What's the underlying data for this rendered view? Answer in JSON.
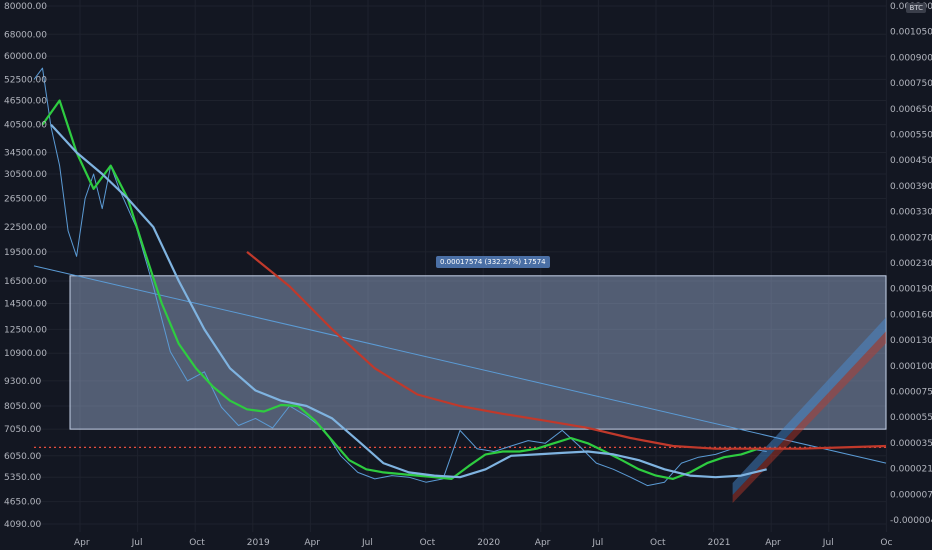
{
  "symbol_badge": "BTC",
  "price_range_label": "0.00017574 (332.27%) 17574",
  "chart_data": {
    "type": "line",
    "left_axis_labels": [
      "80000.00",
      "68000.00",
      "60000.00",
      "52500.00",
      "46500.00",
      "40500.00",
      "34500.00",
      "30500.00",
      "26500.00",
      "22500.00",
      "19500.00",
      "16500.00",
      "14500.00",
      "12500.00",
      "10900.00",
      "9300.00",
      "8050.00",
      "7050.00",
      "6050.00",
      "5350.00",
      "4650.00",
      "4090.00"
    ],
    "right_axis_labels": [
      "0.00120000",
      "0.00105000",
      "0.00090000",
      "0.00075000",
      "0.00065000",
      "0.00055000",
      "0.00045000",
      "0.00039000",
      "0.00033000",
      "0.00027000",
      "0.00023000",
      "0.00019000",
      "0.00016000",
      "0.00013000",
      "0.00010000",
      "0.00007500",
      "0.00005500",
      "0.00003500",
      "0.00002100",
      "0.00000700",
      "-0.00000400"
    ],
    "x_tick_labels": [
      "Apr",
      "Jul",
      "Oct",
      "2019",
      "Apr",
      "Jul",
      "Oct",
      "2020",
      "Apr",
      "Jul",
      "Oct",
      "2021",
      "Apr",
      "Jul",
      "Oc"
    ],
    "series": [
      {
        "color": "#5b9bd5",
        "x": [
          0,
          0.01,
          0.02,
          0.03,
          0.04,
          0.05,
          0.06,
          0.07,
          0.08,
          0.09,
          0.1,
          0.12,
          0.14,
          0.16,
          0.18,
          0.2,
          0.22,
          0.24,
          0.26,
          0.28,
          0.3,
          0.32,
          0.34,
          0.36,
          0.38,
          0.4,
          0.42,
          0.44,
          0.46,
          0.48,
          0.5,
          0.52,
          0.54,
          0.56,
          0.58,
          0.6,
          0.62,
          0.64,
          0.66,
          0.68,
          0.7,
          0.72,
          0.74,
          0.76,
          0.78,
          0.8,
          0.82,
          0.84,
          0.86
        ],
        "y": [
          52500,
          56000,
          40000,
          32000,
          22000,
          19000,
          26500,
          30500,
          25000,
          32000,
          28000,
          22500,
          16000,
          11000,
          9300,
          9800,
          8000,
          7200,
          7500,
          7100,
          8050,
          7600,
          7050,
          6050,
          5500,
          5300,
          5400,
          5350,
          5200,
          5300,
          7000,
          6300,
          6200,
          6400,
          6600,
          6500,
          7000,
          6400,
          5800,
          5600,
          5350,
          5100,
          5200,
          5800,
          6000,
          6100,
          6300,
          6300,
          6200
        ]
      },
      {
        "color": "#2ecc40",
        "x": [
          0.01,
          0.03,
          0.05,
          0.07,
          0.09,
          0.11,
          0.13,
          0.15,
          0.17,
          0.19,
          0.21,
          0.23,
          0.25,
          0.27,
          0.29,
          0.31,
          0.33,
          0.35,
          0.37,
          0.39,
          0.41,
          0.43,
          0.45,
          0.47,
          0.49,
          0.51,
          0.53,
          0.55,
          0.57,
          0.59,
          0.61,
          0.63,
          0.65,
          0.67,
          0.69,
          0.71,
          0.73,
          0.75,
          0.77,
          0.79,
          0.81,
          0.83,
          0.85
        ],
        "y": [
          40500,
          46500,
          34500,
          28000,
          32000,
          26500,
          19500,
          14500,
          11500,
          10000,
          9000,
          8300,
          7900,
          7800,
          8100,
          8050,
          7400,
          6600,
          5900,
          5600,
          5500,
          5450,
          5400,
          5350,
          5300,
          5700,
          6100,
          6200,
          6200,
          6300,
          6500,
          6700,
          6500,
          6200,
          5900,
          5600,
          5400,
          5300,
          5500,
          5800,
          6000,
          6100,
          6300
        ]
      },
      {
        "color": "#7fb3e0",
        "x": [
          0.02,
          0.05,
          0.08,
          0.11,
          0.14,
          0.17,
          0.2,
          0.23,
          0.26,
          0.29,
          0.32,
          0.35,
          0.38,
          0.41,
          0.44,
          0.47,
          0.5,
          0.53,
          0.56,
          0.59,
          0.62,
          0.65,
          0.68,
          0.71,
          0.74,
          0.77,
          0.8,
          0.83,
          0.86
        ],
        "y": [
          40500,
          34500,
          30500,
          26500,
          22500,
          16500,
          12500,
          10000,
          8800,
          8300,
          8050,
          7500,
          6600,
          5800,
          5500,
          5400,
          5350,
          5600,
          6050,
          6100,
          6150,
          6200,
          6100,
          5900,
          5600,
          5400,
          5350,
          5400,
          5600
        ]
      },
      {
        "color": "#c0392b",
        "x": [
          0.25,
          0.3,
          0.35,
          0.4,
          0.45,
          0.5,
          0.55,
          0.6,
          0.65,
          0.7,
          0.75,
          0.8,
          0.85,
          0.9,
          0.95,
          1.0
        ],
        "y": [
          19500,
          16000,
          12500,
          10000,
          8600,
          8050,
          7700,
          7400,
          7100,
          6700,
          6400,
          6300,
          6300,
          6300,
          6350,
          6400
        ]
      }
    ],
    "range_box": {
      "low": 7050,
      "high": 17000
    },
    "dotted_level": 6350,
    "trendline": {
      "from": [
        0,
        18000
      ],
      "to": [
        1,
        5800
      ]
    },
    "channel": {
      "from": [
        0.82,
        5000
      ],
      "to": [
        1,
        12500
      ]
    }
  }
}
